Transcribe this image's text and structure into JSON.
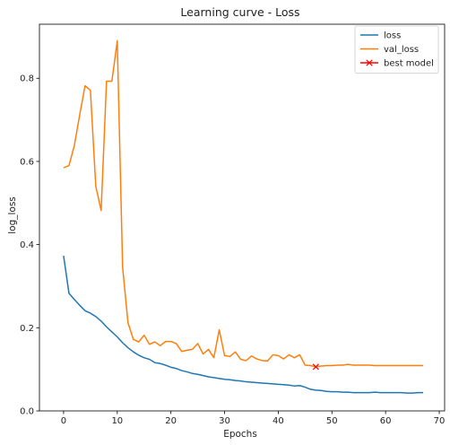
{
  "chart_data": {
    "type": "line",
    "title": "Learning curve - Loss",
    "xlabel": "Epochs",
    "ylabel": "log_loss",
    "xlim": [
      -4.5,
      71
    ],
    "ylim": [
      0,
      0.93
    ],
    "xticks": [
      0,
      10,
      20,
      30,
      40,
      50,
      60,
      70
    ],
    "yticks": [
      0.0,
      0.2,
      0.4,
      0.6,
      0.8
    ],
    "ytick_labels": [
      "0.0",
      "0.2",
      "0.4",
      "0.6",
      "0.8"
    ],
    "grid": false,
    "legend_position": "top-right",
    "series": [
      {
        "name": "loss",
        "color": "#1f77b4",
        "x": [
          0,
          1,
          2,
          3,
          4,
          5,
          6,
          7,
          8,
          9,
          10,
          11,
          12,
          13,
          14,
          15,
          16,
          17,
          18,
          19,
          20,
          21,
          22,
          23,
          24,
          25,
          26,
          27,
          28,
          29,
          30,
          31,
          32,
          33,
          34,
          35,
          36,
          37,
          38,
          39,
          40,
          41,
          42,
          43,
          44,
          45,
          46,
          47,
          48,
          49,
          50,
          51,
          52,
          53,
          54,
          55,
          56,
          57,
          58,
          59,
          60,
          61,
          62,
          63,
          64,
          65,
          66,
          67
        ],
        "values": [
          0.373,
          0.283,
          0.268,
          0.254,
          0.241,
          0.235,
          0.227,
          0.216,
          0.202,
          0.19,
          0.178,
          0.164,
          0.152,
          0.142,
          0.134,
          0.128,
          0.124,
          0.116,
          0.114,
          0.11,
          0.105,
          0.102,
          0.097,
          0.094,
          0.09,
          0.088,
          0.085,
          0.082,
          0.08,
          0.078,
          0.076,
          0.075,
          0.073,
          0.072,
          0.07,
          0.069,
          0.068,
          0.067,
          0.066,
          0.065,
          0.064,
          0.063,
          0.062,
          0.06,
          0.061,
          0.057,
          0.052,
          0.05,
          0.049,
          0.047,
          0.046,
          0.046,
          0.045,
          0.045,
          0.044,
          0.044,
          0.044,
          0.044,
          0.045,
          0.044,
          0.044,
          0.044,
          0.044,
          0.044,
          0.043,
          0.043,
          0.044,
          0.044
        ]
      },
      {
        "name": "val_loss",
        "color": "#ff7f0e",
        "x": [
          0,
          1,
          2,
          3,
          4,
          5,
          6,
          7,
          8,
          9,
          10,
          11,
          12,
          13,
          14,
          15,
          16,
          17,
          18,
          19,
          20,
          21,
          22,
          23,
          24,
          25,
          26,
          27,
          28,
          29,
          30,
          31,
          32,
          33,
          34,
          35,
          36,
          37,
          38,
          39,
          40,
          41,
          42,
          43,
          44,
          45,
          46,
          47,
          48,
          49,
          50,
          51,
          52,
          53,
          54,
          55,
          56,
          57,
          58,
          59,
          60,
          61,
          62,
          63,
          64,
          65,
          66,
          67
        ],
        "values": [
          0.585,
          0.59,
          0.638,
          0.712,
          0.782,
          0.771,
          0.54,
          0.482,
          0.793,
          0.793,
          0.89,
          0.345,
          0.212,
          0.172,
          0.166,
          0.182,
          0.16,
          0.166,
          0.157,
          0.167,
          0.167,
          0.162,
          0.143,
          0.146,
          0.148,
          0.162,
          0.137,
          0.148,
          0.128,
          0.195,
          0.133,
          0.131,
          0.142,
          0.124,
          0.121,
          0.132,
          0.125,
          0.121,
          0.12,
          0.135,
          0.133,
          0.125,
          0.135,
          0.128,
          0.135,
          0.11,
          0.109,
          0.106,
          0.108,
          0.109,
          0.109,
          0.11,
          0.11,
          0.112,
          0.11,
          0.11,
          0.11,
          0.11,
          0.109,
          0.109,
          0.109,
          0.109,
          0.109,
          0.109,
          0.109,
          0.109,
          0.109,
          0.109
        ]
      },
      {
        "name": "best model",
        "color": "#ff0000",
        "marker": "x",
        "x": [
          47
        ],
        "values": [
          0.106
        ]
      }
    ]
  }
}
